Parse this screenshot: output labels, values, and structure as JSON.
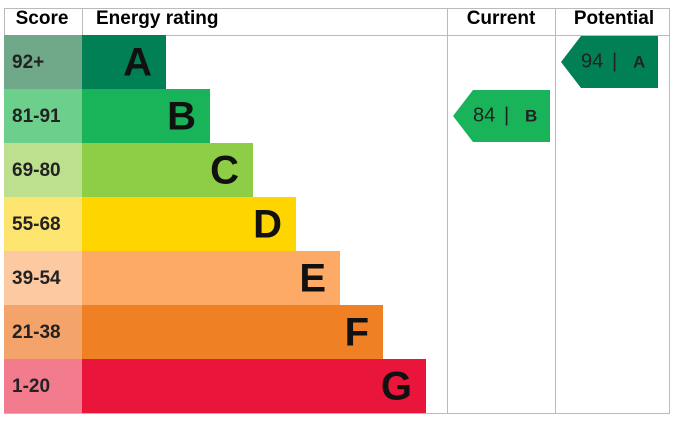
{
  "header": {
    "score": "Score",
    "rating": "Energy rating",
    "current": "Current",
    "potential": "Potential"
  },
  "bands": [
    {
      "score": "92+",
      "letter": "A",
      "color": "#008054",
      "score_color": "#6fa98a"
    },
    {
      "score": "81-91",
      "letter": "B",
      "color": "#19b459",
      "score_color": "#6ccf8c"
    },
    {
      "score": "69-80",
      "letter": "C",
      "color": "#8dce46",
      "score_color": "#bce08e"
    },
    {
      "score": "55-68",
      "letter": "D",
      "color": "#ffd500",
      "score_color": "#fde46e"
    },
    {
      "score": "39-54",
      "letter": "E",
      "color": "#fcaa65",
      "score_color": "#fdc9a1"
    },
    {
      "score": "21-38",
      "letter": "F",
      "color": "#ef8023",
      "score_color": "#f4a46b"
    },
    {
      "score": "1-20",
      "letter": "G",
      "color": "#e9153b",
      "score_color": "#f27b8e"
    }
  ],
  "current": {
    "value": "84",
    "separator": "|",
    "letter": "B"
  },
  "potential": {
    "value": "94",
    "separator": "|",
    "letter": "A"
  }
}
